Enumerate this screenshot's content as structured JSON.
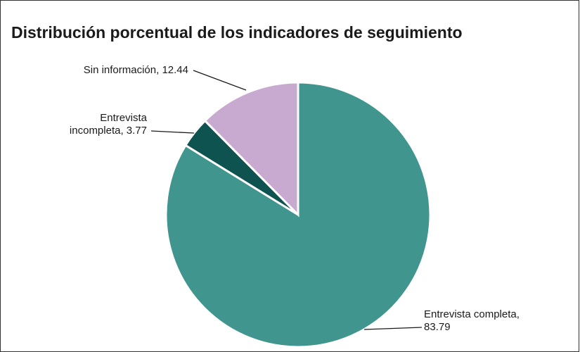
{
  "chart_data": {
    "type": "pie",
    "title": "Distribución porcentual de los indicadores de seguimiento",
    "categories": [
      "Entrevista completa",
      "Entrevista incompleta",
      "Sin información"
    ],
    "values": [
      83.79,
      3.77,
      12.44
    ],
    "value_labels": [
      [
        "Entrevista completa,",
        "83.79"
      ],
      [
        "Entrevista",
        "incompleta, 3.77"
      ],
      [
        "Sin información, 12.44"
      ]
    ],
    "colors": [
      "#41958f",
      "#0e5350",
      "#c8a9d0"
    ]
  }
}
